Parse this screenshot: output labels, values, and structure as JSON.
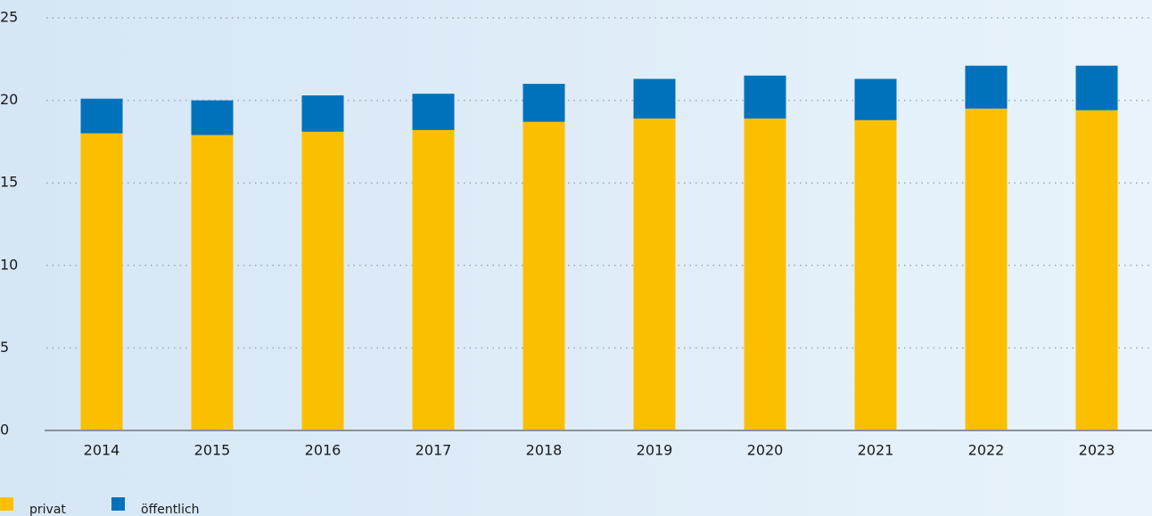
{
  "chart_data": {
    "type": "stacked_bar",
    "categories": [
      "2014",
      "2015",
      "2016",
      "2017",
      "2018",
      "2019",
      "2020",
      "2021",
      "2022",
      "2023"
    ],
    "series": [
      {
        "name": "privat",
        "color": "#fcbf00",
        "values": [
          18.0,
          17.9,
          18.1,
          18.2,
          18.7,
          18.9,
          18.9,
          18.8,
          19.5,
          19.4
        ]
      },
      {
        "name": "öffentlich",
        "color": "#0072bb",
        "values": [
          2.1,
          2.1,
          2.2,
          2.2,
          2.3,
          2.4,
          2.6,
          2.5,
          2.6,
          2.7
        ]
      }
    ],
    "ylim": [
      0,
      25
    ],
    "yticks": [
      0,
      5,
      10,
      15,
      20,
      25
    ],
    "grid": true,
    "legend": "bottom-left"
  }
}
